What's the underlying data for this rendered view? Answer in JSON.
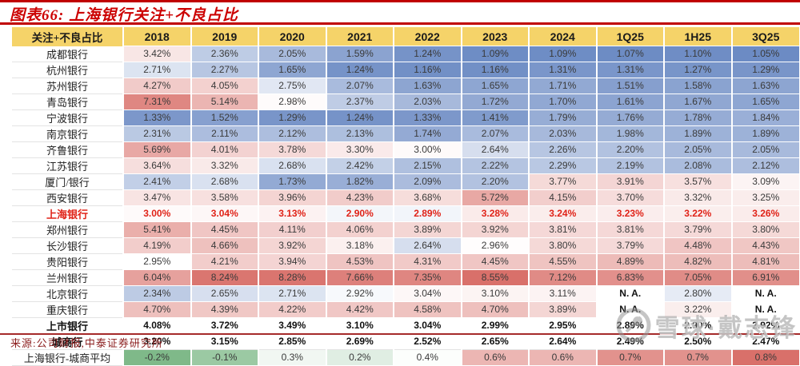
{
  "figure": {
    "title": "图表66: 上海银行关注+不良占比",
    "source": "来源:公司财报,中泰证券研究所",
    "watermark": "雪球·戴志锋"
  },
  "colors": {
    "header_bg": "#f5d369",
    "scale_low_blue": "#6c8bc4",
    "scale_high_red": "#d9706a",
    "scale_diff_green": "#7fb989",
    "title_red": "#cc0000",
    "highlight_red": "#e02318",
    "source_red": "#8b1e1e"
  },
  "chart_data": {
    "type": "heatmap",
    "title": "图表66: 上海银行关注+不良占比",
    "columns": [
      "关注+不良占比",
      "2018",
      "2019",
      "2020",
      "2021",
      "2022",
      "2023",
      "2024",
      "1Q25",
      "1H25",
      "3Q25"
    ],
    "color_scale": {
      "main": {
        "min": 1.05,
        "mid": 2.95,
        "max": 8.55
      },
      "diff": {
        "min": -0.2,
        "mid": 0.45,
        "max": 0.8
      }
    },
    "rows": [
      {
        "name": "成都银行",
        "values": [
          "3.42%",
          "2.36%",
          "2.05%",
          "1.59%",
          "1.24%",
          "1.09%",
          "1.09%",
          "1.07%",
          "1.10%",
          "1.05%"
        ]
      },
      {
        "name": "杭州银行",
        "values": [
          "2.71%",
          "2.27%",
          "1.65%",
          "1.24%",
          "1.16%",
          "1.16%",
          "1.31%",
          "1.31%",
          "1.27%",
          "1.29%"
        ]
      },
      {
        "name": "苏州银行",
        "values": [
          "4.27%",
          "4.05%",
          "2.75%",
          "2.07%",
          "1.63%",
          "1.65%",
          "1.71%",
          "1.51%",
          "1.58%",
          "1.63%"
        ]
      },
      {
        "name": "青岛银行",
        "values": [
          "7.31%",
          "5.14%",
          "2.98%",
          "2.37%",
          "2.03%",
          "1.72%",
          "1.70%",
          "1.61%",
          "1.67%",
          "1.65%"
        ]
      },
      {
        "name": "宁波银行",
        "values": [
          "1.33%",
          "1.52%",
          "1.29%",
          "1.24%",
          "1.33%",
          "1.41%",
          "1.79%",
          "1.76%",
          "1.78%",
          "1.84%"
        ]
      },
      {
        "name": "南京银行",
        "values": [
          "2.31%",
          "2.11%",
          "2.12%",
          "2.13%",
          "1.74%",
          "2.07%",
          "2.03%",
          "1.98%",
          "1.89%",
          "1.89%"
        ]
      },
      {
        "name": "齐鲁银行",
        "values": [
          "5.69%",
          "4.01%",
          "3.78%",
          "3.30%",
          "3.00%",
          "2.64%",
          "2.26%",
          "2.20%",
          "2.05%",
          "2.05%"
        ]
      },
      {
        "name": "江苏银行",
        "values": [
          "3.64%",
          "3.32%",
          "2.68%",
          "2.42%",
          "2.15%",
          "2.22%",
          "2.29%",
          "2.19%",
          "2.08%",
          "2.12%"
        ]
      },
      {
        "name": "厦门/银行",
        "values": [
          "2.41%",
          "2.68%",
          "1.73%",
          "1.82%",
          "2.09%",
          "2.20%",
          "3.77%",
          "3.91%",
          "3.57%",
          "3.09%"
        ]
      },
      {
        "name": "西安银行",
        "values": [
          "3.47%",
          "3.58%",
          "3.96%",
          "4.23%",
          "3.68%",
          "5.72%",
          "4.15%",
          "3.70%",
          "3.32%",
          "3.25%"
        ]
      },
      {
        "name": "上海银行",
        "highlight": true,
        "values": [
          "3.00%",
          "3.04%",
          "3.13%",
          "2.90%",
          "2.89%",
          "3.28%",
          "3.24%",
          "3.23%",
          "3.22%",
          "3.26%"
        ]
      },
      {
        "name": "郑州银行",
        "values": [
          "5.41%",
          "4.45%",
          "4.11%",
          "4.06%",
          "3.89%",
          "3.92%",
          "3.81%",
          "3.81%",
          "3.79%",
          "3.80%"
        ]
      },
      {
        "name": "长沙银行",
        "values": [
          "4.19%",
          "4.66%",
          "3.92%",
          "3.18%",
          "2.64%",
          "2.96%",
          "3.80%",
          "3.79%",
          "4.48%",
          "4.43%"
        ]
      },
      {
        "name": "贵阳银行",
        "values": [
          "2.95%",
          "4.21%",
          "3.94%",
          "4.53%",
          "4.31%",
          "4.45%",
          "4.55%",
          "4.89%",
          "4.82%",
          "4.81%"
        ]
      },
      {
        "name": "兰州银行",
        "values": [
          "6.04%",
          "8.24%",
          "8.28%",
          "7.66%",
          "7.35%",
          "8.55%",
          "7.12%",
          "6.83%",
          "7.05%",
          "6.91%"
        ]
      },
      {
        "name": "北京银行",
        "values": [
          "2.34%",
          "2.65%",
          "2.71%",
          "2.92%",
          "3.04%",
          "3.10%",
          "3.11%",
          "N. A.",
          "2.80%",
          "N. A."
        ]
      },
      {
        "name": "重庆银行",
        "values": [
          "4.70%",
          "4.39%",
          "4.22%",
          "4.42%",
          "4.58%",
          "4.70%",
          "3.89%",
          "N. A.",
          "3.22%",
          "N. A."
        ]
      },
      {
        "name": "上市银行",
        "aggregate": true,
        "values": [
          "4.08%",
          "3.72%",
          "3.49%",
          "3.10%",
          "3.04%",
          "2.99%",
          "2.95%",
          "2.89%",
          "2.90%",
          "2.92%"
        ]
      },
      {
        "name": "城商行",
        "aggregate": true,
        "values": [
          "3.20%",
          "3.15%",
          "2.85%",
          "2.69%",
          "2.52%",
          "2.65%",
          "2.64%",
          "2.49%",
          "2.50%",
          "2.47%"
        ]
      },
      {
        "name": "上海银行-城商平均",
        "scale": "diff",
        "values": [
          "-0.2%",
          "-0.1%",
          "0.3%",
          "0.2%",
          "0.4%",
          "0.6%",
          "0.6%",
          "0.7%",
          "0.7%",
          "0.8%"
        ]
      }
    ]
  }
}
